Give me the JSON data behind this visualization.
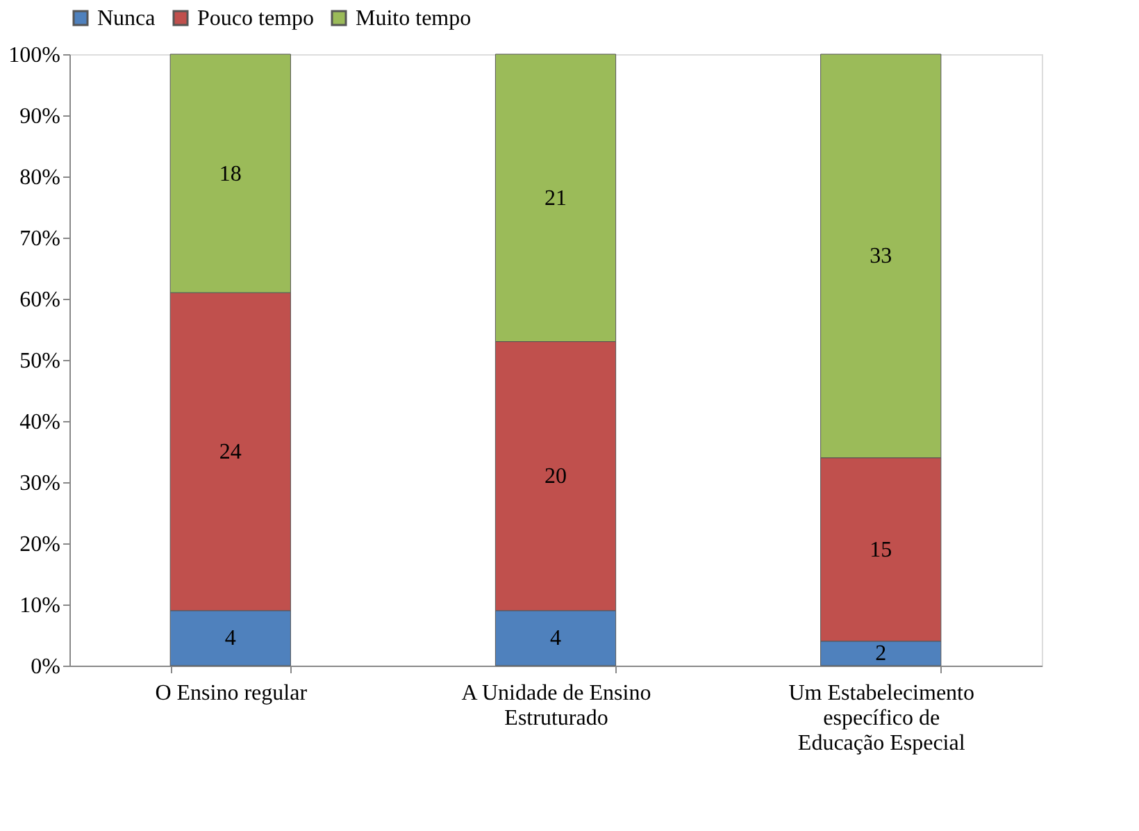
{
  "chart_data": {
    "type": "bar",
    "stacked": true,
    "categories": [
      "O Ensino regular",
      "A Unidade de Ensino Estruturado",
      "Um Estabelecimento específico de Educação Especial"
    ],
    "series": [
      {
        "name": "Nunca",
        "color": "#4f81bd",
        "values": [
          9,
          9,
          4
        ]
      },
      {
        "name": "Pouco tempo",
        "color": "#c0504d",
        "values": [
          52,
          44,
          30
        ]
      },
      {
        "name": "Muito tempo",
        "color": "#9bbb59",
        "values": [
          39,
          47,
          66
        ]
      }
    ],
    "annotations": [
      "4",
      "4",
      "2",
      "24",
      "20",
      "15",
      "18",
      "21",
      "33"
    ],
    "ylim": [
      0,
      100
    ],
    "yticks": [
      {
        "value": 0,
        "label": "0%"
      },
      {
        "value": 10,
        "label": "10%"
      },
      {
        "value": 20,
        "label": "20%"
      },
      {
        "value": 30,
        "label": "30%"
      },
      {
        "value": 40,
        "label": "40%"
      },
      {
        "value": 50,
        "label": "50%"
      },
      {
        "value": 60,
        "label": "60%"
      },
      {
        "value": 70,
        "label": "70%"
      },
      {
        "value": 80,
        "label": "80%"
      },
      {
        "value": 90,
        "label": "90%"
      },
      {
        "value": 100,
        "label": "100%"
      }
    ],
    "grid": false,
    "legend": "top"
  }
}
